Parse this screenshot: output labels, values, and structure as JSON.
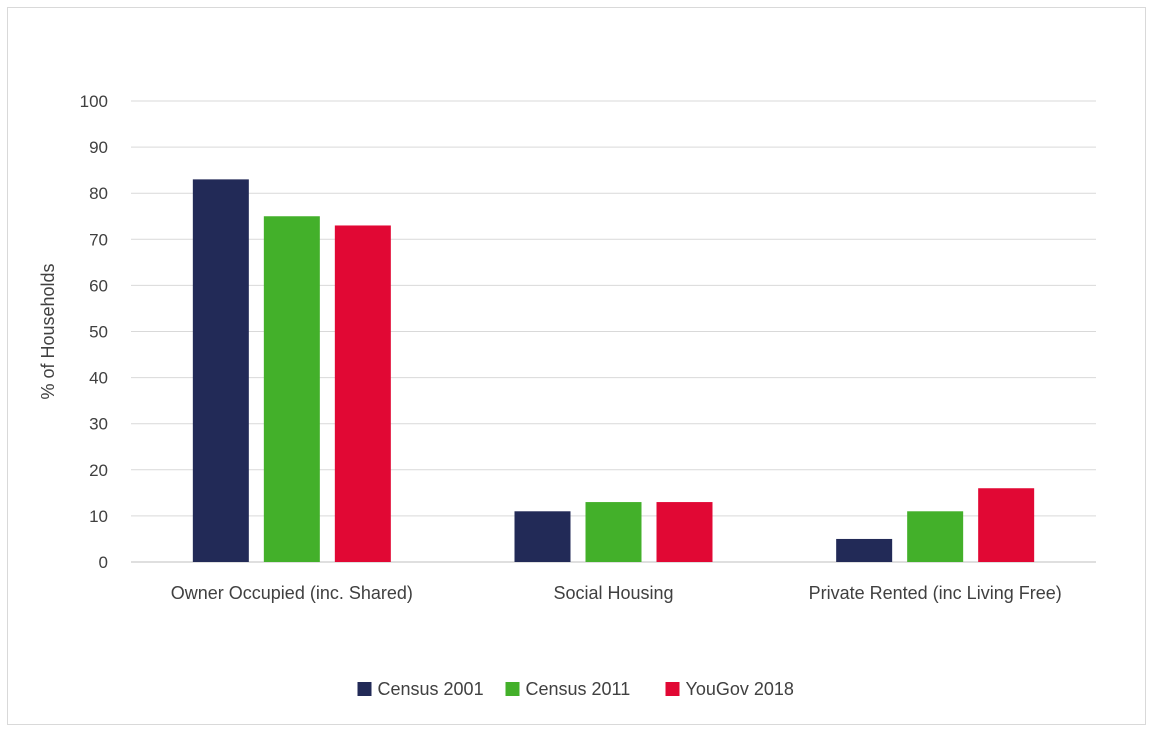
{
  "chart_data": {
    "type": "bar",
    "title": "",
    "xlabel": "",
    "ylabel": "% of Households",
    "ylim": [
      0,
      100
    ],
    "yticks": [
      0,
      10,
      20,
      30,
      40,
      50,
      60,
      70,
      80,
      90,
      100
    ],
    "grid": true,
    "legend_position": "bottom",
    "categories": [
      "Owner Occupied (inc. Shared)",
      "Social Housing",
      "Private Rented (inc Living Free)"
    ],
    "series": [
      {
        "name": "Census 2001",
        "color": "#222a57",
        "values": [
          83,
          11,
          5
        ]
      },
      {
        "name": "Census 2011",
        "color": "#43b02a",
        "values": [
          75,
          13,
          11
        ]
      },
      {
        "name": "YouGov 2018",
        "color": "#e10834",
        "values": [
          73,
          13,
          16
        ]
      }
    ]
  }
}
